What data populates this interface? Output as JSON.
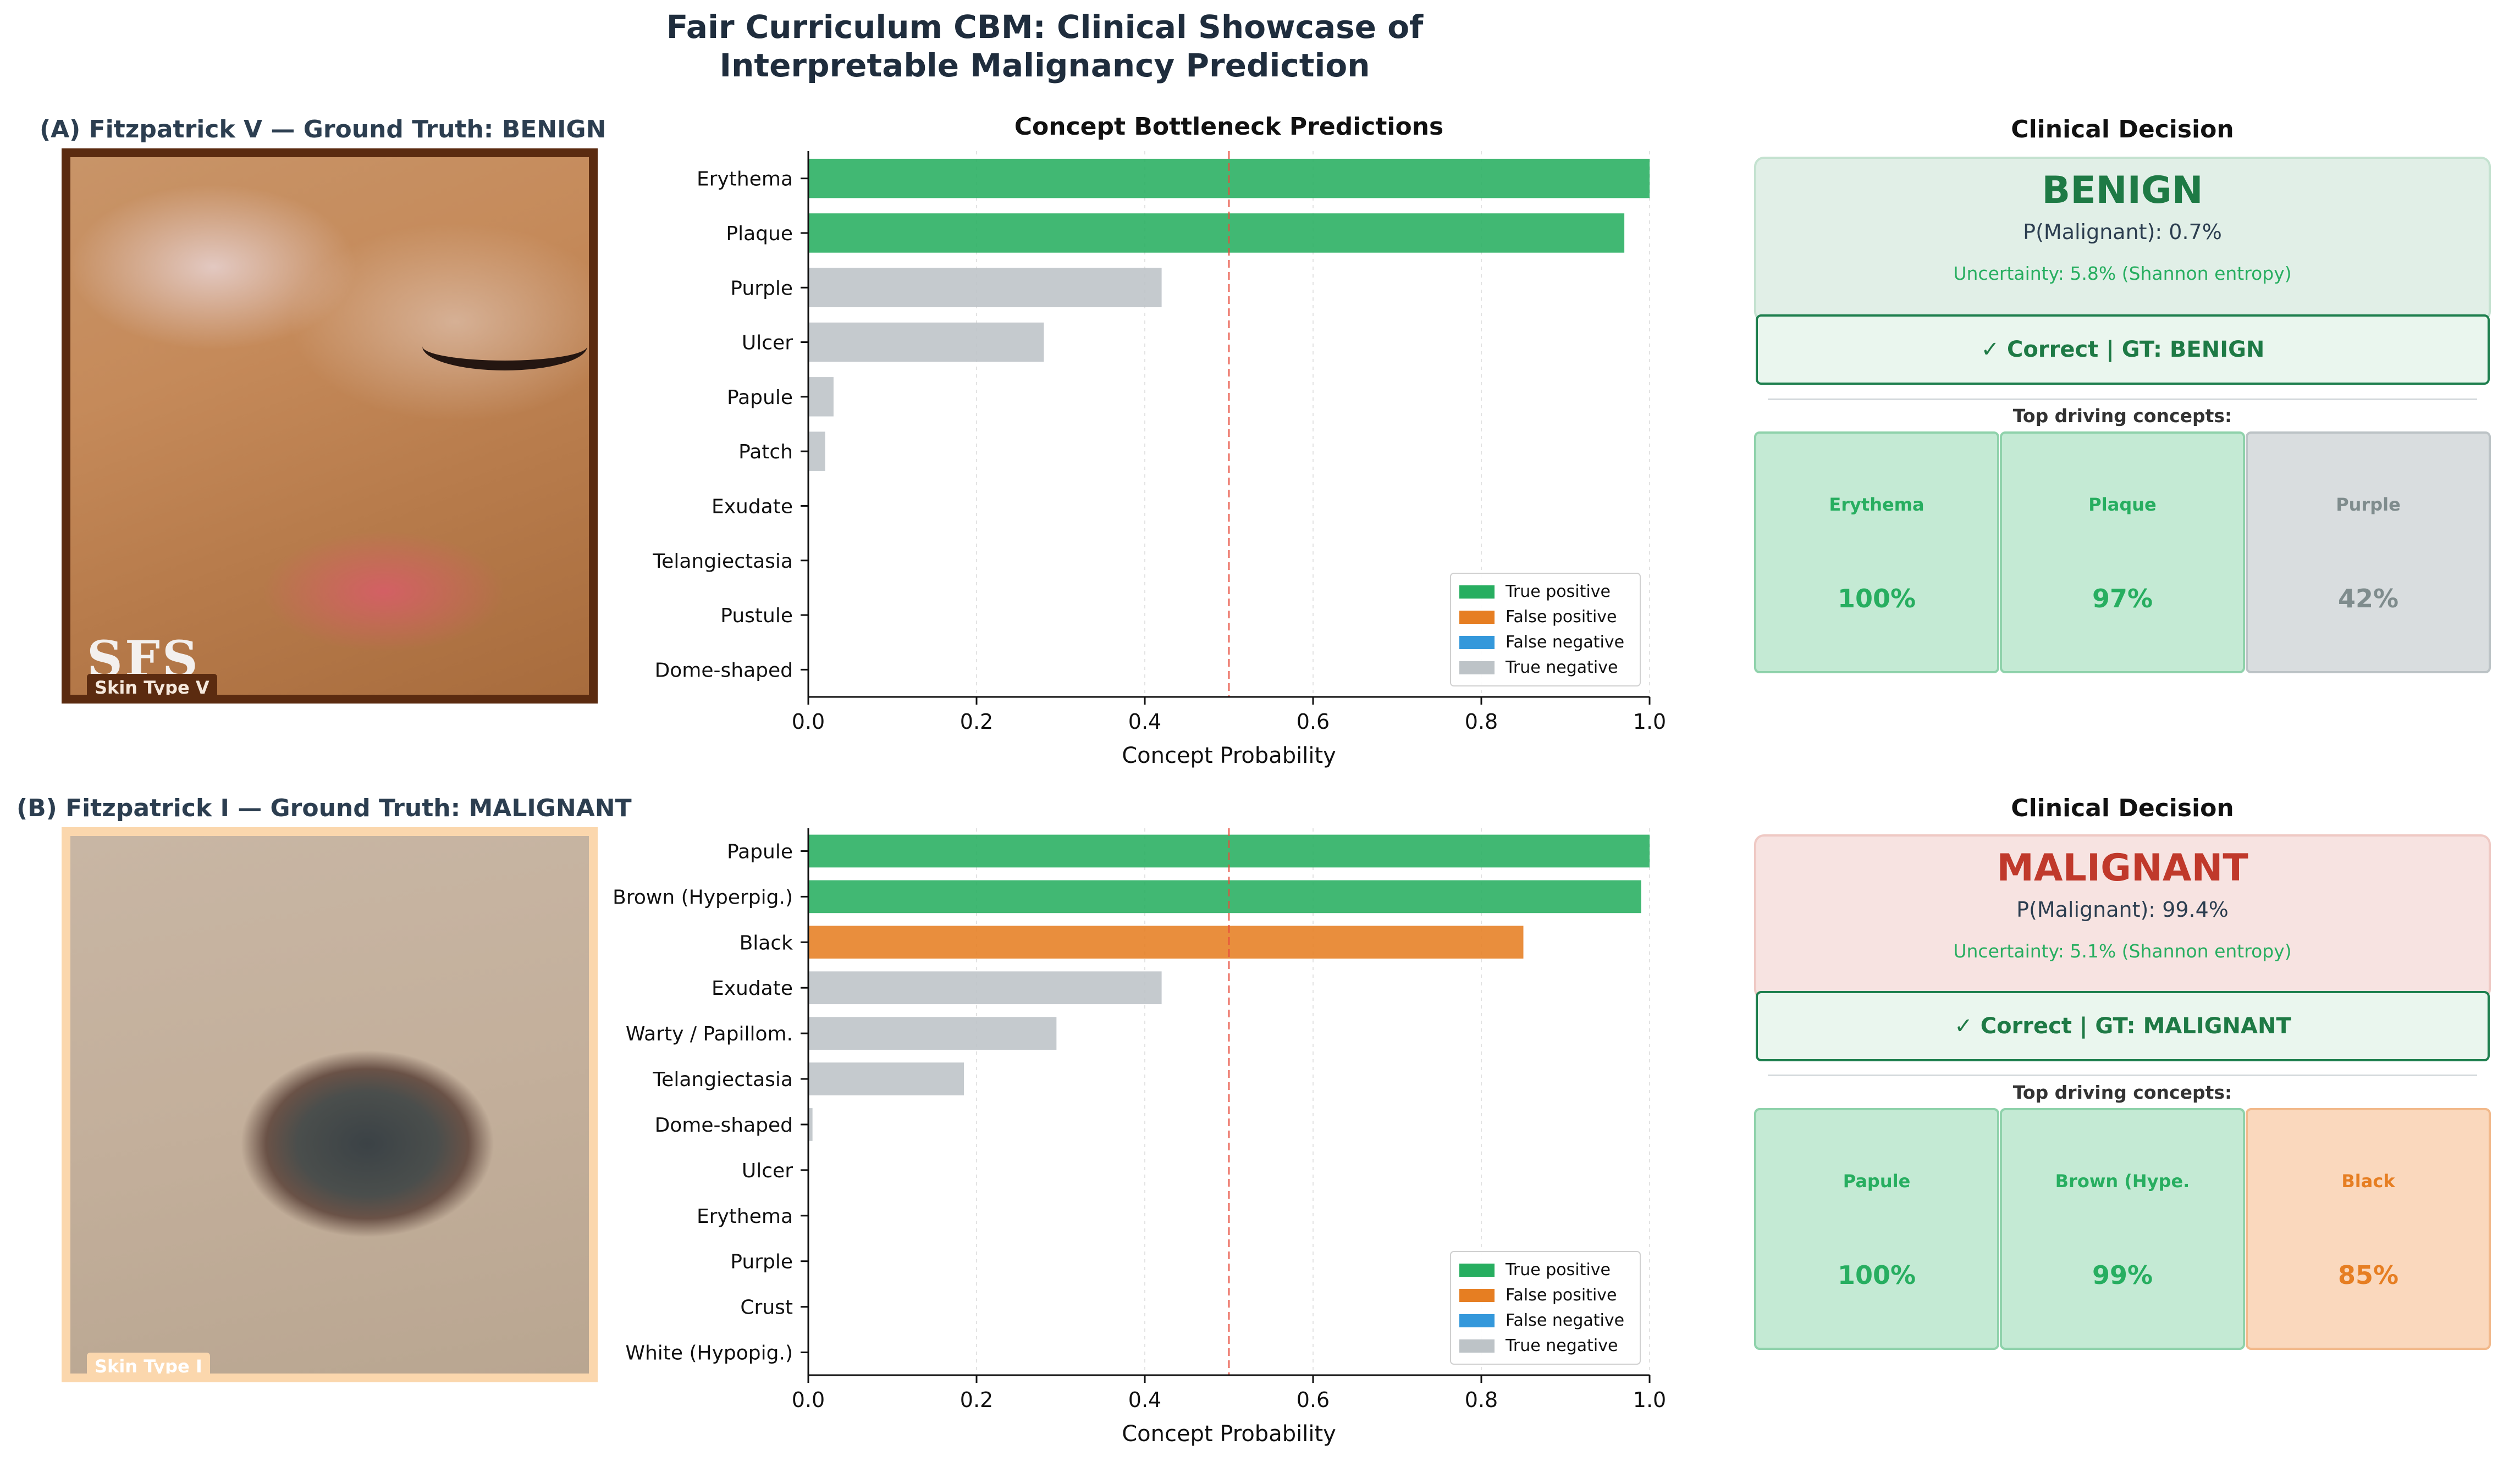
{
  "title_line1": "Fair Curriculum CBM: Clinical Showcase of",
  "title_line2": "Interpretable Malignancy Prediction",
  "colors": {
    "tp": "#27ae60",
    "fp": "#e67e22",
    "fn": "#3498db",
    "tn": "#bdc3c7",
    "benign_box": "#e1efe7",
    "malignant_box": "#f7e3e1"
  },
  "panels": [
    {
      "label": "(A)  Fitzpatrick V — Ground Truth: BENIGN",
      "skin_tag": "Skin Type V",
      "watermark": "SFS",
      "decision": {
        "title": "Clinical Decision",
        "label": "BENIGN",
        "label_color": "#1e7a45",
        "box_color": "#e1efe7",
        "box_border": "#c4e2d0",
        "prob_text": "P(Malignant):  0.7%",
        "uncertainty_text": "Uncertainty:  5.8%  (Shannon entropy)",
        "correct_text": "✓  Correct  |  GT: BENIGN"
      },
      "top_title": "Top driving concepts:",
      "top_concepts": [
        {
          "name": "Erythema",
          "value_text": "100%",
          "kind": "tp"
        },
        {
          "name": "Plaque",
          "value_text": "97%",
          "kind": "tp"
        },
        {
          "name": "Purple",
          "value_text": "42%",
          "kind": "tn"
        }
      ]
    },
    {
      "label": "(B)  Fitzpatrick I — Ground Truth: MALIGNANT",
      "skin_tag": "Skin Type I",
      "watermark": "",
      "decision": {
        "title": "Clinical Decision",
        "label": "MALIGNANT",
        "label_color": "#c0392b",
        "box_color": "#f7e3e1",
        "box_border": "#efc9c4",
        "prob_text": "P(Malignant):  99.4%",
        "uncertainty_text": "Uncertainty:  5.1%  (Shannon entropy)",
        "correct_text": "✓  Correct  |  GT: MALIGNANT"
      },
      "top_title": "Top driving concepts:",
      "top_concepts": [
        {
          "name": "Papule",
          "value_text": "100%",
          "kind": "tp"
        },
        {
          "name": "Brown (Hype.",
          "value_text": "99%",
          "kind": "tp"
        },
        {
          "name": "Black",
          "value_text": "85%",
          "kind": "fp"
        }
      ]
    }
  ],
  "chart_data": [
    {
      "type": "bar",
      "orientation": "horizontal",
      "title": "Concept Bottleneck Predictions",
      "xlabel": "Concept Probability",
      "ylabel": "",
      "xlim": [
        0,
        1
      ],
      "xticks": [
        "0.0",
        "0.2",
        "0.4",
        "0.6",
        "0.8",
        "1.0"
      ],
      "threshold": 0.5,
      "grid": "vertical dotted",
      "legend_position": "bottom-right",
      "legend": [
        "True positive",
        "False positive",
        "False negative",
        "True negative"
      ],
      "categories": [
        "Erythema",
        "Plaque",
        "Purple",
        "Ulcer",
        "Papule",
        "Patch",
        "Exudate",
        "Telangiectasia",
        "Pustule",
        "Dome-shaped"
      ],
      "values": [
        1.0,
        0.97,
        0.42,
        0.28,
        0.03,
        0.02,
        0.0,
        0.0,
        0.0,
        0.0
      ],
      "outcome": [
        "tp",
        "tp",
        "tn",
        "tn",
        "tn",
        "tn",
        "tn",
        "tn",
        "tn",
        "tn"
      ]
    },
    {
      "type": "bar",
      "orientation": "horizontal",
      "title": "",
      "xlabel": "Concept Probability",
      "ylabel": "",
      "xlim": [
        0,
        1
      ],
      "xticks": [
        "0.0",
        "0.2",
        "0.4",
        "0.6",
        "0.8",
        "1.0"
      ],
      "threshold": 0.5,
      "grid": "vertical dotted",
      "legend_position": "bottom-right",
      "legend": [
        "True positive",
        "False positive",
        "False negative",
        "True negative"
      ],
      "categories": [
        "Papule",
        "Brown (Hyperpig.)",
        "Black",
        "Exudate",
        "Warty / Papillom.",
        "Telangiectasia",
        "Dome-shaped",
        "Ulcer",
        "Erythema",
        "Purple",
        "Crust",
        "White (Hypopig.)"
      ],
      "values": [
        1.0,
        0.99,
        0.85,
        0.42,
        0.295,
        0.185,
        0.005,
        0.0,
        0.0,
        0.0,
        0.0,
        0.0
      ],
      "outcome": [
        "tp",
        "tp",
        "fp",
        "tn",
        "tn",
        "tn",
        "tn",
        "tn",
        "tn",
        "tn",
        "tn",
        "tn"
      ]
    }
  ]
}
